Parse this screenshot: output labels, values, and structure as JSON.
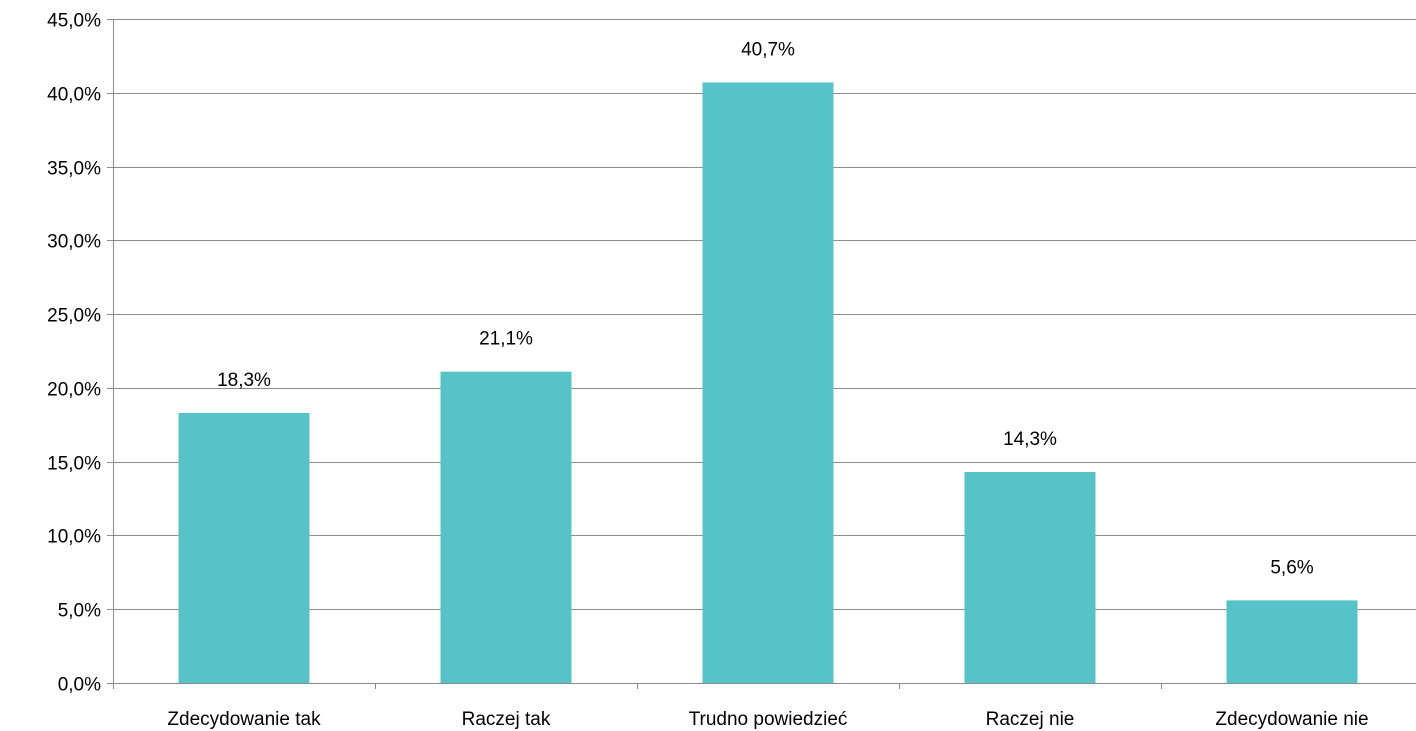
{
  "chart_data": {
    "type": "bar",
    "categories": [
      "Zdecydowanie tak",
      "Raczej tak",
      "Trudno powiedzieć",
      "Raczej nie",
      "Zdecydowanie nie"
    ],
    "values": [
      18.3,
      21.1,
      40.7,
      14.3,
      5.6
    ],
    "data_labels": [
      "18,3%",
      "21,1%",
      "40,7%",
      "14,3%",
      "5,6%"
    ],
    "y_ticks": [
      0,
      5,
      10,
      15,
      20,
      25,
      30,
      35,
      40,
      45
    ],
    "y_tick_labels": [
      "0,0%",
      "5,0%",
      "10,0%",
      "15,0%",
      "20,0%",
      "25,0%",
      "30,0%",
      "35,0%",
      "40,0%",
      "45,0%"
    ],
    "ylim": [
      0,
      45
    ],
    "title": "",
    "xlabel": "",
    "ylabel": "",
    "grid": true,
    "legend": "none",
    "bar_color": "#55c3c8"
  }
}
